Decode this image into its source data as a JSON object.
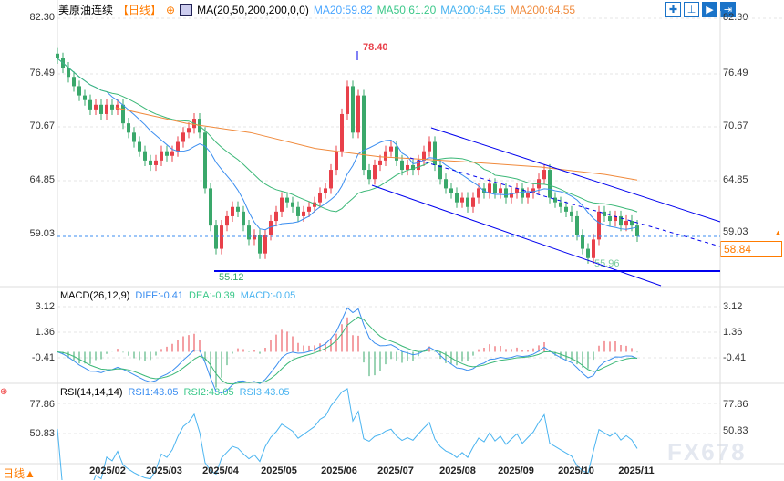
{
  "header": {
    "symbol": "美原油连续",
    "period": "【日线】",
    "ma_label": "MA(20,50,200,200,0,0)",
    "ma20": "MA20:59.82",
    "ma50": "MA50:61.20",
    "ma200a": "MA200:64.55",
    "ma200b": "MA200:64.55",
    "tools": [
      "crosshair-icon",
      "fit-icon",
      "play-icon",
      "exit-icon"
    ]
  },
  "colors": {
    "up": "#e8404a",
    "down": "#3aa86b",
    "ma20": "#3b8ef0",
    "ma50": "#3cb878",
    "ma200": "#f08a3c",
    "trend": "#0000ee",
    "accent": "#ff7b00"
  },
  "price_axis": [
    "82.30",
    "76.49",
    "70.67",
    "64.85",
    "59.03"
  ],
  "current_price": "58.84",
  "high_label": "78.40",
  "low_label": "55.12",
  "recent_low_label": "55.96",
  "macd": {
    "label": "MACD(26,12,9)",
    "diff": "DIFF:-0.41",
    "dea": "DEA:-0.39",
    "macd": "MACD:-0.05",
    "axis": [
      "3.12",
      "1.36",
      "-0.41"
    ]
  },
  "rsi": {
    "label": "RSI(14,14,14)",
    "rsi1": "RSI1:43.05",
    "rsi2": "RSI2:43.05",
    "rsi3": "RSI3:43.05",
    "axis": [
      "77.86",
      "50.83"
    ]
  },
  "x_labels": [
    "2025/02",
    "2025/03",
    "2025/04",
    "2025/05",
    "2025/06",
    "2025/07",
    "2025/08",
    "2025/09",
    "2025/10",
    "2025/11"
  ],
  "footer": {
    "period": "日线▲"
  },
  "watermark": "FX678",
  "chart_data": {
    "type": "candlestick",
    "ylim": [
      53,
      82.3
    ],
    "closes": [
      78,
      77,
      76,
      75,
      74,
      73.5,
      72.5,
      73,
      72,
      73,
      72.5,
      73,
      71,
      70,
      69,
      68,
      67,
      66.5,
      67,
      68,
      67.5,
      68,
      69,
      70,
      70.5,
      71.5,
      70,
      64,
      60,
      57.5,
      60,
      61,
      62,
      61.5,
      60,
      58.5,
      59,
      57,
      59,
      60.5,
      61.5,
      63,
      62.5,
      62,
      61,
      61.5,
      62,
      62.5,
      63.5,
      64,
      66,
      68,
      72,
      75,
      70,
      74,
      66,
      65,
      66.5,
      67,
      68,
      68.5,
      67,
      66,
      66.5,
      66,
      67,
      68,
      69,
      66.5,
      65,
      64,
      63.5,
      62.5,
      63,
      62,
      63,
      64,
      63.5,
      64.5,
      63.5,
      64,
      63,
      63.5,
      64,
      63,
      63.5,
      64,
      65,
      66,
      63,
      62.5,
      62,
      61.5,
      61,
      59,
      57.5,
      56.5,
      58.5,
      61.5,
      61,
      60.5,
      61,
      60,
      60.5,
      60,
      58.84
    ],
    "ma200": [
      [
        18,
        72.7
      ],
      [
        40,
        71
      ],
      [
        60,
        70
      ],
      [
        80,
        68.3
      ],
      [
        100,
        67.4
      ],
      [
        125,
        66.9
      ],
      [
        150,
        66.3
      ],
      [
        170,
        65.5
      ],
      [
        180,
        64.9
      ],
      [
        106,
        64.55
      ]
    ]
  }
}
